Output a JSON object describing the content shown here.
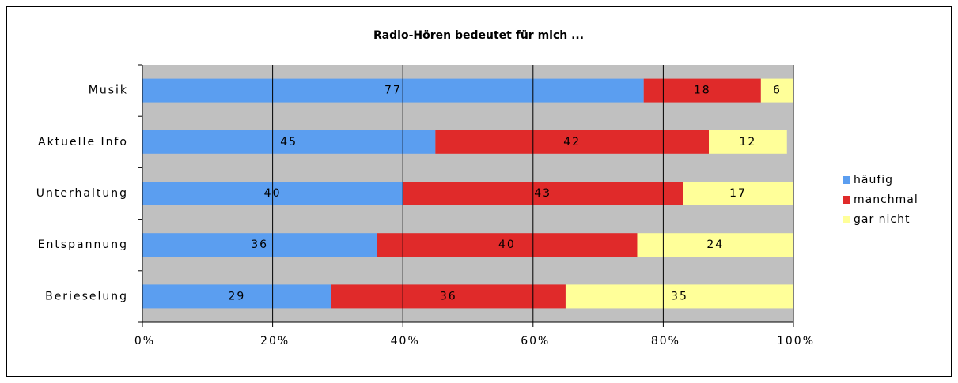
{
  "chart_data": {
    "type": "bar",
    "orientation": "horizontal",
    "stacked": true,
    "title": "Radio-Hören bedeutet für mich ...",
    "categories": [
      "Musik",
      "Aktuelle Info",
      "Unterhaltung",
      "Entspannung",
      "Berieselung"
    ],
    "series": [
      {
        "name": "häufig",
        "color": "#5b9ef0",
        "values": [
          77,
          45,
          40,
          36,
          29
        ]
      },
      {
        "name": "manchmal",
        "color": "#e02a2a",
        "values": [
          18,
          42,
          43,
          40,
          36
        ]
      },
      {
        "name": "gar nicht",
        "color": "#ffff99",
        "values": [
          6,
          12,
          17,
          24,
          35
        ]
      }
    ],
    "xlim": [
      0,
      100
    ],
    "xticks": [
      {
        "value": 0,
        "label": "0%"
      },
      {
        "value": 20,
        "label": "20%"
      },
      {
        "value": 40,
        "label": "40%"
      },
      {
        "value": 60,
        "label": "60%"
      },
      {
        "value": 80,
        "label": "80%"
      },
      {
        "value": 100,
        "label": "100%"
      }
    ],
    "grid": true,
    "legend": "right"
  }
}
